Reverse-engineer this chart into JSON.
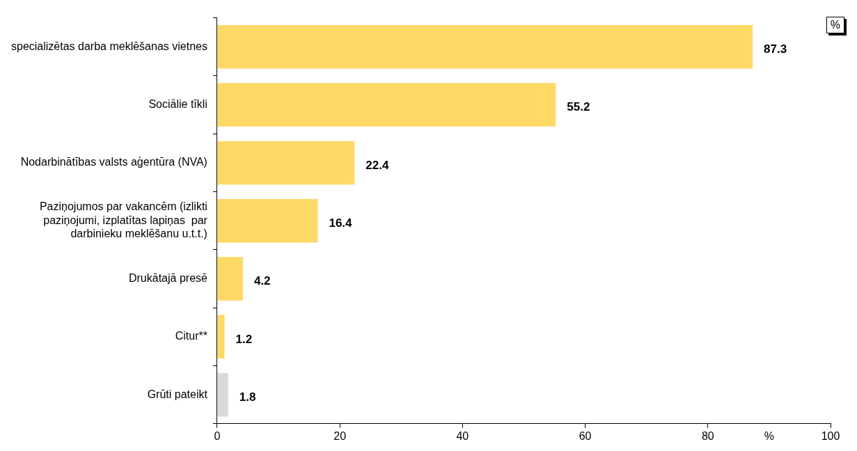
{
  "chart_data": {
    "type": "bar",
    "orientation": "horizontal",
    "categories": [
      "specializētas darba meklēšanas vietnes",
      "Sociālie tīkli",
      "Nodarbinātības valsts aģentūra (NVA)",
      "Paziņojumos par vakancēm (izlikti paziņojumi, izplatītas lapiņas  par darbinieku meklēšanu u.t.t.)",
      "Drukātajā presē",
      "Citur**",
      "Grūti pateikt"
    ],
    "values": [
      87.3,
      55.2,
      22.4,
      16.4,
      4.2,
      1.2,
      1.8
    ],
    "colors": [
      "#ffd966",
      "#ffd966",
      "#ffd966",
      "#ffd966",
      "#ffd966",
      "#ffd966",
      "#d9d9d9"
    ],
    "xlim": [
      0,
      100
    ],
    "xticks": [
      0,
      20,
      40,
      60,
      80,
      100
    ],
    "xlabel": "%",
    "annotations": [
      "%"
    ],
    "data_labels": true,
    "grid": false,
    "legend": false
  }
}
